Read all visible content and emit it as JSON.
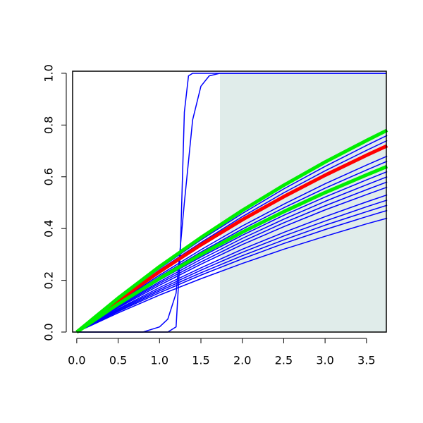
{
  "chart_data": {
    "type": "line",
    "x": [
      0,
      0.5,
      1,
      1.5,
      2,
      2.5,
      3,
      3.5,
      3.75
    ],
    "xlim": [
      -0.05,
      3.74
    ],
    "ylim": [
      0,
      1.008
    ],
    "xticks": [
      {
        "value": 0,
        "label": "0.0"
      },
      {
        "value": 0.5,
        "label": "0.5"
      },
      {
        "value": 1,
        "label": "1.0"
      },
      {
        "value": 1.5,
        "label": "1.5"
      },
      {
        "value": 2,
        "label": "2.0"
      },
      {
        "value": 2.5,
        "label": "2.5"
      },
      {
        "value": 3,
        "label": "3.0"
      },
      {
        "value": 3.5,
        "label": "3.5"
      }
    ],
    "yticks": [
      {
        "value": 0,
        "label": "0.0"
      },
      {
        "value": 0.2,
        "label": "0.2"
      },
      {
        "value": 0.4,
        "label": "0.4"
      },
      {
        "value": 0.6,
        "label": "0.6"
      },
      {
        "value": 0.8,
        "label": "0.8"
      },
      {
        "value": 1,
        "label": "1.0"
      }
    ],
    "shade": {
      "xlim": [
        1.73,
        3.74
      ],
      "ylim": [
        0,
        1
      ],
      "color": "#e0ecea"
    },
    "series": [
      {
        "color": "#0000ff",
        "width": 1.5,
        "values": [
          0,
          0.128,
          0.246,
          0.356,
          0.458,
          0.553,
          0.64,
          0.721,
          0.76
        ]
      },
      {
        "color": "#0000ff",
        "width": 1.5,
        "values": [
          0,
          0.124,
          0.24,
          0.346,
          0.446,
          0.538,
          0.623,
          0.702,
          0.74
        ]
      },
      {
        "color": "#0000ff",
        "width": 1.5,
        "values": [
          0,
          0.114,
          0.22,
          0.318,
          0.41,
          0.494,
          0.573,
          0.645,
          0.68
        ]
      },
      {
        "color": "#0000ff",
        "width": 1.5,
        "values": [
          0,
          0.111,
          0.214,
          0.309,
          0.398,
          0.48,
          0.556,
          0.626,
          0.66
        ]
      },
      {
        "color": "#0000ff",
        "width": 1.5,
        "values": [
          0,
          0.104,
          0.201,
          0.29,
          0.374,
          0.451,
          0.522,
          0.588,
          0.62
        ]
      },
      {
        "color": "#0000ff",
        "width": 1.5,
        "values": [
          0,
          0.101,
          0.194,
          0.281,
          0.362,
          0.436,
          0.505,
          0.569,
          0.6
        ]
      },
      {
        "color": "#0000ff",
        "width": 1.5,
        "values": [
          0,
          0.097,
          0.188,
          0.271,
          0.35,
          0.422,
          0.488,
          0.55,
          0.58
        ]
      },
      {
        "color": "#0000ff",
        "width": 1.5,
        "values": [
          0,
          0.094,
          0.181,
          0.262,
          0.338,
          0.407,
          0.472,
          0.531,
          0.56
        ]
      },
      {
        "color": "#0000ff",
        "width": 1.5,
        "values": [
          0,
          0.089,
          0.172,
          0.248,
          0.32,
          0.385,
          0.446,
          0.503,
          0.53
        ]
      },
      {
        "color": "#0000ff",
        "width": 1.5,
        "values": [
          0,
          0.086,
          0.165,
          0.239,
          0.308,
          0.371,
          0.429,
          0.484,
          0.51
        ]
      },
      {
        "color": "#0000ff",
        "width": 1.5,
        "values": [
          0,
          0.082,
          0.159,
          0.229,
          0.295,
          0.356,
          0.413,
          0.465,
          0.49
        ]
      },
      {
        "color": "#0000ff",
        "width": 1.5,
        "values": [
          0,
          0.079,
          0.152,
          0.22,
          0.283,
          0.342,
          0.396,
          0.446,
          0.47
        ]
      },
      {
        "color": "#0000ff",
        "width": 1.5,
        "values": [
          0,
          0.074,
          0.143,
          0.206,
          0.265,
          0.32,
          0.37,
          0.418,
          0.44
        ]
      },
      {
        "color": "#0000ff",
        "width": 1.5,
        "x": [
          0,
          1.1,
          1.2,
          1.25,
          1.3,
          1.35,
          1.4,
          1.73,
          3.74
        ],
        "values": [
          0,
          0,
          0.02,
          0.3,
          0.85,
          0.99,
          1,
          1,
          1
        ]
      },
      {
        "color": "#0000ff",
        "width": 1.5,
        "x": [
          0,
          0.8,
          1,
          1.1,
          1.2,
          1.3,
          1.4,
          1.5,
          1.6,
          1.73,
          3.74
        ],
        "values": [
          0,
          0,
          0.02,
          0.05,
          0.15,
          0.5,
          0.82,
          0.95,
          0.99,
          1,
          1
        ]
      },
      {
        "color": "#ff0000",
        "width": 5,
        "values": [
          0,
          0.121,
          0.233,
          0.337,
          0.434,
          0.523,
          0.606,
          0.683,
          0.72
        ]
      },
      {
        "color": "#00ee00",
        "width": 5,
        "values": [
          0,
          0.108,
          0.207,
          0.3,
          0.386,
          0.465,
          0.539,
          0.607,
          0.64
        ]
      },
      {
        "color": "#00ee00",
        "width": 5,
        "values": [
          0,
          0.131,
          0.253,
          0.365,
          0.47,
          0.567,
          0.657,
          0.74,
          0.78
        ]
      }
    ]
  }
}
